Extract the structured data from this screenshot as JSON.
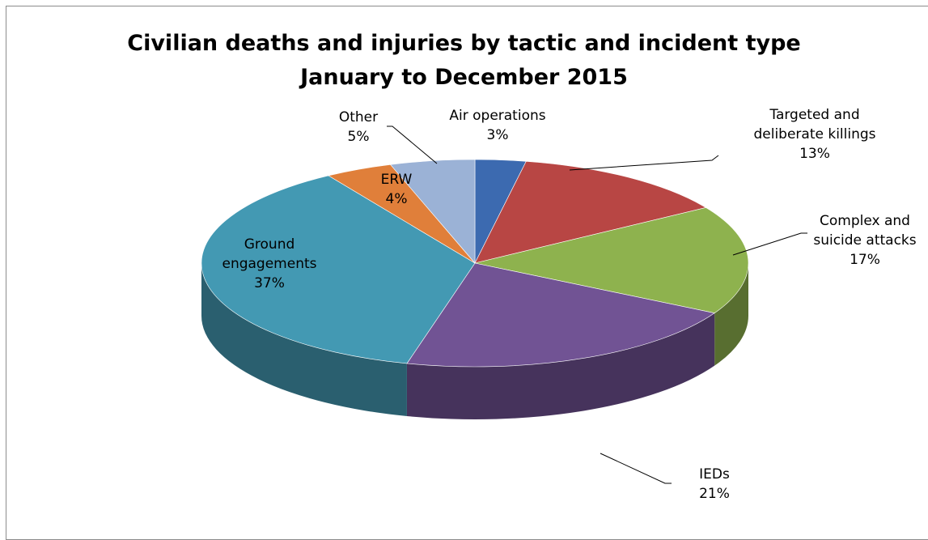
{
  "chart_data": {
    "type": "pie",
    "title": "Civilian deaths and injuries by tactic and incident type",
    "subtitle": "January to December 2015",
    "slices": [
      {
        "name": "Air operations",
        "label_lines": [
          "Air operations"
        ],
        "value": 3,
        "pct_label": "3%",
        "color": "#3c6ab0"
      },
      {
        "name": "Targeted and deliberate killings",
        "label_lines": [
          "Targeted and",
          "deliberate killings"
        ],
        "value": 13,
        "pct_label": "13%",
        "color": "#b84644"
      },
      {
        "name": "Complex and suicide attacks",
        "label_lines": [
          "Complex and",
          "suicide attacks"
        ],
        "value": 17,
        "pct_label": "17%",
        "color": "#8eb24e"
      },
      {
        "name": "IEDs",
        "label_lines": [
          "IEDs"
        ],
        "value": 21,
        "pct_label": "21%",
        "color": "#715394"
      },
      {
        "name": "Ground engagements",
        "label_lines": [
          "Ground",
          "engagements"
        ],
        "value": 37,
        "pct_label": "37%",
        "color": "#4399b3"
      },
      {
        "name": "ERW",
        "label_lines": [
          "ERW"
        ],
        "value": 4,
        "pct_label": "4%",
        "color": "#e07f3a"
      },
      {
        "name": "Other",
        "label_lines": [
          "Other"
        ],
        "value": 5,
        "pct_label": "5%",
        "color": "#9bb2d6"
      }
    ],
    "legend": "none",
    "label_style": "data labels with leader lines"
  }
}
